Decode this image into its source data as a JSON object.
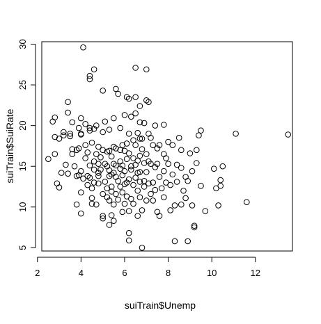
{
  "chart_data": {
    "type": "scatter",
    "title": "",
    "xlabel": "suiTrain$Unemp",
    "ylabel": "suiTrain$SuiRate",
    "xlim": [
      2.2,
      13.7
    ],
    "ylim": [
      4.6,
      30.3
    ],
    "xticks": [
      2,
      4,
      6,
      8,
      10,
      12
    ],
    "yticks": [
      5,
      10,
      15,
      20,
      25,
      30
    ],
    "grid": false,
    "marker": "open-circle",
    "color": "#000000",
    "points": [
      [
        2.5,
        15.9
      ],
      [
        2.7,
        20.5
      ],
      [
        2.8,
        18.6
      ],
      [
        2.8,
        16.5
      ],
      [
        2.8,
        21.0
      ],
      [
        2.9,
        12.9
      ],
      [
        3.0,
        18.4
      ],
      [
        3.0,
        12.4
      ],
      [
        3.1,
        14.2
      ],
      [
        3.2,
        18.8
      ],
      [
        3.2,
        19.2
      ],
      [
        3.3,
        15.2
      ],
      [
        3.4,
        21.6
      ],
      [
        3.4,
        22.9
      ],
      [
        3.4,
        14.1
      ],
      [
        3.5,
        18.7
      ],
      [
        3.5,
        19.0
      ],
      [
        3.6,
        17.1
      ],
      [
        3.6,
        16.5
      ],
      [
        3.6,
        20.4
      ],
      [
        3.7,
        15.0
      ],
      [
        3.8,
        13.8
      ],
      [
        3.8,
        10.3
      ],
      [
        3.8,
        17.0
      ],
      [
        3.9,
        19.7
      ],
      [
        3.9,
        13.9
      ],
      [
        3.9,
        17.2
      ],
      [
        4.0,
        19.0
      ],
      [
        4.0,
        20.9
      ],
      [
        4.0,
        14.4
      ],
      [
        4.0,
        11.8
      ],
      [
        4.0,
        9.2
      ],
      [
        4.0,
        18.9
      ],
      [
        4.1,
        13.5
      ],
      [
        4.1,
        29.6
      ],
      [
        4.2,
        17.6
      ],
      [
        4.2,
        16.0
      ],
      [
        4.2,
        20.2
      ],
      [
        4.3,
        13.8
      ],
      [
        4.3,
        16.7
      ],
      [
        4.3,
        12.7
      ],
      [
        4.4,
        19.4
      ],
      [
        4.4,
        19.7
      ],
      [
        4.4,
        25.7
      ],
      [
        4.4,
        26.1
      ],
      [
        4.4,
        15.1
      ],
      [
        4.4,
        13.6
      ],
      [
        4.5,
        12.3
      ],
      [
        4.5,
        10.4
      ],
      [
        4.5,
        17.9
      ],
      [
        4.5,
        11.1
      ],
      [
        4.6,
        14.6
      ],
      [
        4.6,
        26.9
      ],
      [
        4.6,
        13.0
      ],
      [
        4.6,
        15.6
      ],
      [
        4.6,
        19.6
      ],
      [
        4.7,
        16.5
      ],
      [
        4.7,
        20.0
      ],
      [
        4.7,
        10.3
      ],
      [
        4.8,
        13.8
      ],
      [
        4.8,
        17.4
      ],
      [
        4.8,
        14.2
      ],
      [
        4.8,
        15.3
      ],
      [
        4.8,
        12.9
      ],
      [
        4.9,
        16.1
      ],
      [
        4.9,
        14.6
      ],
      [
        5.0,
        11.6
      ],
      [
        5.0,
        8.6
      ],
      [
        5.0,
        19.2
      ],
      [
        5.0,
        17.0
      ],
      [
        5.0,
        8.9
      ],
      [
        5.0,
        24.3
      ],
      [
        5.1,
        15.3
      ],
      [
        5.1,
        13.1
      ],
      [
        5.1,
        20.5
      ],
      [
        5.2,
        15.0
      ],
      [
        5.2,
        16.8
      ],
      [
        5.2,
        11.2
      ],
      [
        5.2,
        12.3
      ],
      [
        5.3,
        14.5
      ],
      [
        5.3,
        13.8
      ],
      [
        5.3,
        16.9
      ],
      [
        5.3,
        19.5
      ],
      [
        5.3,
        7.8
      ],
      [
        5.3,
        10.8
      ],
      [
        5.4,
        16.2
      ],
      [
        5.4,
        14.0
      ],
      [
        5.4,
        12.5
      ],
      [
        5.4,
        11.9
      ],
      [
        5.4,
        9.0
      ],
      [
        5.5,
        17.4
      ],
      [
        5.5,
        20.9
      ],
      [
        5.5,
        14.2
      ],
      [
        5.5,
        15.3
      ],
      [
        5.5,
        10.3
      ],
      [
        5.5,
        8.3
      ],
      [
        5.6,
        13.7
      ],
      [
        5.6,
        11.6
      ],
      [
        5.6,
        24.5
      ],
      [
        5.6,
        17.2
      ],
      [
        5.6,
        15.1
      ],
      [
        5.7,
        13.2
      ],
      [
        5.7,
        10.9
      ],
      [
        5.7,
        23.9
      ],
      [
        5.8,
        14.7
      ],
      [
        5.8,
        12.5
      ],
      [
        5.8,
        15.6
      ],
      [
        5.8,
        17.0
      ],
      [
        5.8,
        19.7
      ],
      [
        5.9,
        15.1
      ],
      [
        5.9,
        11.8
      ],
      [
        5.9,
        9.4
      ],
      [
        5.9,
        13.9
      ],
      [
        5.9,
        17.6
      ],
      [
        6.0,
        21.3
      ],
      [
        6.0,
        12.8
      ],
      [
        6.0,
        10.4
      ],
      [
        6.0,
        16.9
      ],
      [
        6.0,
        14.4
      ],
      [
        6.1,
        23.5
      ],
      [
        6.1,
        17.8
      ],
      [
        6.1,
        13.0
      ],
      [
        6.1,
        11.3
      ],
      [
        6.1,
        15.9
      ],
      [
        6.2,
        23.3
      ],
      [
        6.2,
        19.0
      ],
      [
        6.2,
        13.4
      ],
      [
        6.2,
        9.5
      ],
      [
        6.2,
        6.8
      ],
      [
        6.2,
        5.9
      ],
      [
        6.2,
        16.6
      ],
      [
        6.3,
        15.0
      ],
      [
        6.3,
        14.6
      ],
      [
        6.3,
        11.0
      ],
      [
        6.3,
        21.1
      ],
      [
        6.4,
        18.2
      ],
      [
        6.4,
        12.7
      ],
      [
        6.4,
        16.0
      ],
      [
        6.4,
        10.4
      ],
      [
        6.5,
        15.2
      ],
      [
        6.5,
        13.6
      ],
      [
        6.5,
        21.5
      ],
      [
        6.5,
        23.5
      ],
      [
        6.5,
        17.6
      ],
      [
        6.5,
        27.1
      ],
      [
        6.6,
        19.1
      ],
      [
        6.6,
        15.7
      ],
      [
        6.6,
        14.2
      ],
      [
        6.6,
        12.0
      ],
      [
        6.6,
        8.9
      ],
      [
        6.7,
        20.4
      ],
      [
        6.7,
        18.4
      ],
      [
        6.7,
        16.3
      ],
      [
        6.7,
        14.3
      ],
      [
        6.7,
        13.1
      ],
      [
        6.7,
        11.2
      ],
      [
        6.7,
        22.4
      ],
      [
        6.8,
        9.6
      ],
      [
        6.8,
        5.0
      ],
      [
        6.8,
        18.4
      ],
      [
        6.8,
        17.1
      ],
      [
        6.9,
        13.2
      ],
      [
        6.9,
        15.4
      ],
      [
        6.9,
        12.5
      ],
      [
        6.9,
        20.3
      ],
      [
        7.0,
        23.1
      ],
      [
        7.0,
        26.9
      ],
      [
        7.0,
        16.5
      ],
      [
        7.0,
        14.3
      ],
      [
        7.0,
        10.8
      ],
      [
        7.1,
        19.0
      ],
      [
        7.1,
        12.9
      ],
      [
        7.1,
        15.6
      ],
      [
        7.1,
        22.9
      ],
      [
        7.2,
        15.3
      ],
      [
        7.2,
        18.5
      ],
      [
        7.2,
        11.6
      ],
      [
        7.3,
        13.0
      ],
      [
        7.3,
        10.8
      ],
      [
        7.3,
        17.6
      ],
      [
        7.4,
        20.0
      ],
      [
        7.4,
        14.9
      ],
      [
        7.4,
        12.1
      ],
      [
        7.5,
        17.2
      ],
      [
        7.5,
        15.3
      ],
      [
        7.5,
        9.4
      ],
      [
        7.6,
        17.6
      ],
      [
        7.6,
        13.7
      ],
      [
        7.6,
        8.9
      ],
      [
        7.7,
        12.3
      ],
      [
        7.8,
        20.1
      ],
      [
        7.8,
        16.5
      ],
      [
        7.8,
        14.4
      ],
      [
        7.8,
        11.2
      ],
      [
        7.9,
        13.0
      ],
      [
        7.9,
        16.0
      ],
      [
        8.0,
        18.0
      ],
      [
        8.0,
        15.3
      ],
      [
        8.1,
        12.7
      ],
      [
        8.1,
        9.6
      ],
      [
        8.2,
        17.6
      ],
      [
        8.2,
        14.0
      ],
      [
        8.3,
        10.2
      ],
      [
        8.3,
        5.8
      ],
      [
        8.4,
        15.2
      ],
      [
        8.4,
        13.1
      ],
      [
        8.5,
        18.5
      ],
      [
        8.6,
        17.0
      ],
      [
        8.6,
        14.8
      ],
      [
        8.6,
        10.3
      ],
      [
        8.7,
        12.0
      ],
      [
        8.8,
        13.7
      ],
      [
        8.8,
        11.1
      ],
      [
        8.9,
        13.2
      ],
      [
        8.9,
        5.8
      ],
      [
        9.0,
        16.6
      ],
      [
        9.1,
        14.4
      ],
      [
        9.1,
        10.2
      ],
      [
        9.2,
        7.7
      ],
      [
        9.2,
        7.5
      ],
      [
        9.3,
        17.0
      ],
      [
        9.3,
        15.4
      ],
      [
        9.4,
        18.8
      ],
      [
        9.5,
        12.6
      ],
      [
        9.5,
        19.4
      ],
      [
        9.7,
        9.5
      ],
      [
        10.1,
        14.7
      ],
      [
        10.2,
        12.3
      ],
      [
        10.3,
        10.2
      ],
      [
        10.4,
        13.3
      ],
      [
        10.4,
        12.6
      ],
      [
        10.5,
        15.0
      ],
      [
        11.1,
        19.0
      ],
      [
        11.6,
        10.6
      ],
      [
        13.5,
        18.9
      ]
    ]
  }
}
